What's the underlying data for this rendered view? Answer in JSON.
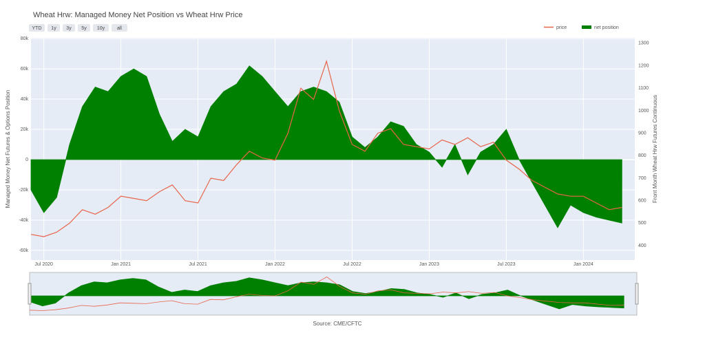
{
  "title": "Wheat Hrw: Managed Money Net Position vs Wheat Hrw Price",
  "buttons": [
    "YTD",
    "1y",
    "3y",
    "5y",
    "10y",
    "all"
  ],
  "source": "Source: CME/CFTC",
  "chart_data": {
    "type": "line",
    "x": [
      "2020-06",
      "2020-07",
      "2020-08",
      "2020-09",
      "2020-10",
      "2020-11",
      "2020-12",
      "2021-01",
      "2021-02",
      "2021-03",
      "2021-04",
      "2021-05",
      "2021-06",
      "2021-07",
      "2021-08",
      "2021-09",
      "2021-10",
      "2021-11",
      "2021-12",
      "2022-01",
      "2022-02",
      "2022-03",
      "2022-04",
      "2022-05",
      "2022-06",
      "2022-07",
      "2022-08",
      "2022-09",
      "2022-10",
      "2022-11",
      "2022-12",
      "2023-01",
      "2023-02",
      "2023-03",
      "2023-04",
      "2023-05",
      "2023-06",
      "2023-07",
      "2023-08",
      "2023-09",
      "2023-10",
      "2023-11",
      "2023-12",
      "2024-01",
      "2024-02",
      "2024-03",
      "2024-04"
    ],
    "xlim": [
      "2020-06",
      "2024-05"
    ],
    "xticks": [
      {
        "value": "2020-07",
        "label": "Jul 2020"
      },
      {
        "value": "2021-01",
        "label": "Jan 2021"
      },
      {
        "value": "2021-07",
        "label": "Jul 2021"
      },
      {
        "value": "2022-01",
        "label": "Jan 2022"
      },
      {
        "value": "2022-07",
        "label": "Jul 2022"
      },
      {
        "value": "2023-01",
        "label": "Jan 2023"
      },
      {
        "value": "2023-07",
        "label": "Jul 2023"
      },
      {
        "value": "2024-01",
        "label": "Jan 2024"
      }
    ],
    "ylim": [
      -66400,
      80500
    ],
    "yticks": [
      {
        "value": -60000,
        "label": "-60k"
      },
      {
        "value": -40000,
        "label": "-40k"
      },
      {
        "value": -20000,
        "label": "-20k"
      },
      0,
      {
        "value": 20000,
        "label": "20k"
      },
      {
        "value": 40000,
        "label": "40k"
      },
      {
        "value": 60000,
        "label": "60k"
      },
      {
        "value": 80000,
        "label": "80k"
      }
    ],
    "y2lim": [
      336,
      1324
    ],
    "y2ticks": [
      400,
      500,
      600,
      700,
      800,
      900,
      1000,
      1100,
      1200,
      1300
    ],
    "ylabel": "Managed Money Net Futures & Options Position",
    "y2label": "Front Month Wheat Hrw Futures Continuous",
    "grid": true,
    "legend": "top-right",
    "series": [
      {
        "name": "price",
        "type": "line",
        "axis": "y2",
        "color": "#e8644a",
        "values": [
          450,
          440,
          460,
          500,
          560,
          540,
          570,
          620,
          610,
          600,
          640,
          670,
          600,
          590,
          700,
          690,
          760,
          820,
          790,
          780,
          900,
          1100,
          1050,
          1220,
          1000,
          850,
          820,
          900,
          920,
          850,
          840,
          830,
          870,
          850,
          880,
          840,
          860,
          780,
          740,
          690,
          660,
          630,
          620,
          620,
          590,
          560,
          570
        ]
      },
      {
        "name": "net position",
        "type": "area",
        "color": "#008000",
        "values": [
          -20000,
          -35000,
          -25000,
          10000,
          35000,
          48000,
          45000,
          55000,
          60000,
          55000,
          30000,
          12000,
          20000,
          15000,
          35000,
          45000,
          50000,
          62000,
          55000,
          45000,
          35000,
          45000,
          48000,
          45000,
          38000,
          15000,
          8000,
          15000,
          25000,
          22000,
          10000,
          5000,
          -5000,
          10000,
          -10000,
          5000,
          10000,
          20000,
          0,
          -15000,
          -30000,
          -45000,
          -30000,
          -35000,
          -38000,
          -40000,
          -42000
        ]
      }
    ]
  }
}
